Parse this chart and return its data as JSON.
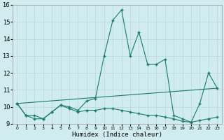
{
  "xlabel": "Humidex (Indice chaleur)",
  "x": [
    0,
    1,
    2,
    3,
    4,
    5,
    6,
    7,
    8,
    9,
    10,
    11,
    12,
    13,
    14,
    15,
    16,
    17,
    18,
    19,
    20,
    21,
    22,
    23
  ],
  "line1": [
    10.2,
    9.5,
    9.5,
    9.3,
    9.7,
    10.1,
    9.9,
    9.7,
    9.8,
    9.8,
    9.9,
    9.9,
    9.8,
    9.7,
    9.6,
    9.5,
    9.5,
    9.4,
    9.3,
    9.15,
    9.1,
    9.2,
    9.3,
    9.4
  ],
  "line2": [
    10.2,
    9.5,
    9.3,
    9.3,
    9.7,
    10.1,
    10.0,
    9.8,
    10.35,
    10.5,
    13.0,
    15.1,
    15.7,
    13.0,
    14.4,
    12.5,
    12.5,
    12.8,
    9.5,
    9.3,
    9.1,
    10.2,
    12.0,
    11.1
  ],
  "line3_x": [
    0,
    23
  ],
  "line3_y": [
    10.2,
    11.1
  ],
  "color": "#1a7a6a",
  "bg_color": "#d0ecee",
  "grid_color": "#b8d8da",
  "ylim": [
    9,
    16
  ],
  "yticks": [
    9,
    10,
    11,
    12,
    13,
    14,
    15,
    16
  ],
  "xticks": [
    0,
    1,
    2,
    3,
    4,
    5,
    6,
    7,
    8,
    9,
    10,
    11,
    12,
    13,
    14,
    15,
    16,
    17,
    18,
    19,
    20,
    21,
    22,
    23
  ],
  "marker": "+",
  "linewidth": 0.8,
  "markersize": 3.5,
  "markeredgewidth": 1.0
}
